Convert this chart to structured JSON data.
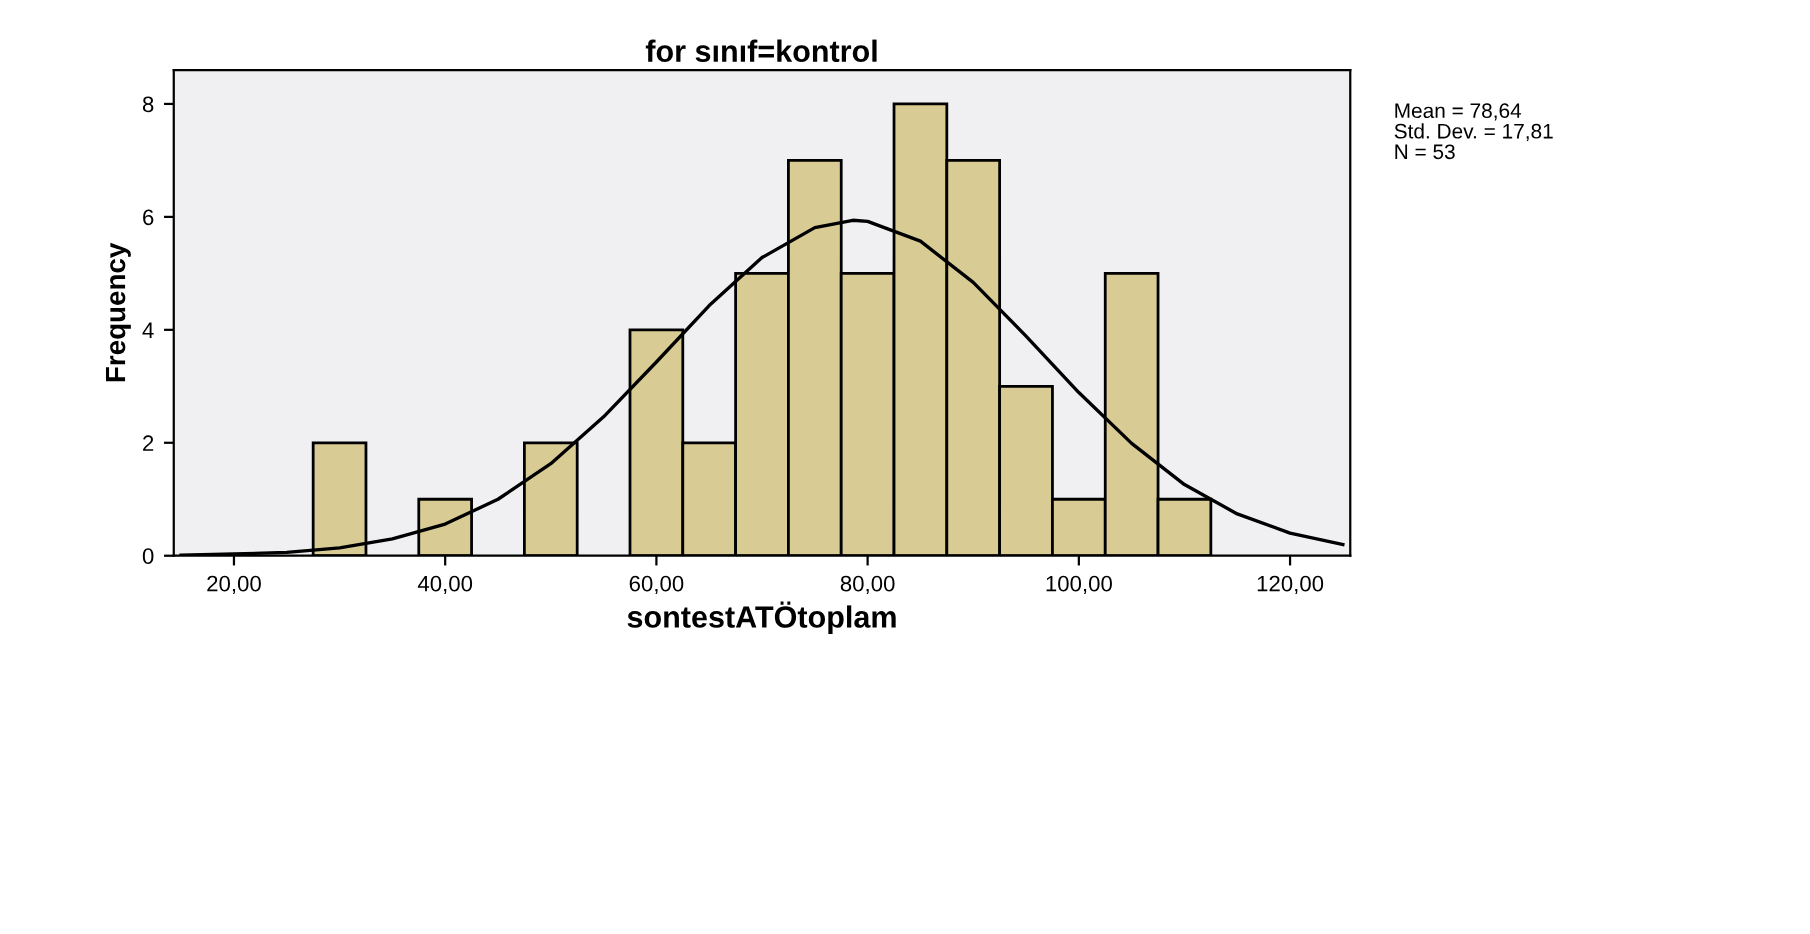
{
  "chart_data": {
    "type": "histogram",
    "title": "for sınıf=kontrol",
    "xlabel": "sontestATÖtoplam",
    "ylabel": "Frequency",
    "bins": [
      27.5,
      32.5,
      37.5,
      42.5,
      47.5,
      52.5,
      57.5,
      62.5,
      67.5,
      72.5,
      77.5,
      82.5,
      87.5,
      92.5,
      97.5,
      102.5,
      107.5,
      112.5
    ],
    "values": [
      2,
      0,
      1,
      0,
      2,
      0,
      4,
      2,
      5,
      7,
      5,
      8,
      7,
      3,
      1,
      5,
      1
    ],
    "color": "#d8cc94",
    "series": [
      {
        "type": "line",
        "color": "#000000",
        "x": [
          15,
          20,
          25,
          30,
          35,
          40,
          45,
          50,
          55,
          60,
          65,
          70,
          75,
          78.6,
          80,
          85,
          90,
          95,
          100,
          105,
          110,
          115,
          120,
          125
        ],
        "values": [
          0.01,
          0.03,
          0.06,
          0.14,
          0.3,
          0.56,
          1.0,
          1.63,
          2.46,
          3.43,
          4.43,
          5.28,
          5.81,
          5.94,
          5.92,
          5.57,
          4.84,
          3.89,
          2.89,
          1.99,
          1.26,
          0.74,
          0.4,
          0.2
        ]
      }
    ],
    "xlim": [
      14.3,
      125.7
    ],
    "ylim": [
      0,
      8.6
    ],
    "xticks": [
      {
        "value": 20,
        "label": "20,00"
      },
      {
        "value": 40,
        "label": "40,00"
      },
      {
        "value": 60,
        "label": "60,00"
      },
      {
        "value": 80,
        "label": "80,00"
      },
      {
        "value": 100,
        "label": "100,00"
      },
      {
        "value": 120,
        "label": "120,00"
      }
    ],
    "yticks": [
      0,
      2,
      4,
      6,
      8
    ],
    "annotations": [
      "Mean = 78,64",
      "Std. Dev. = 17,81",
      "N = 53"
    ]
  }
}
